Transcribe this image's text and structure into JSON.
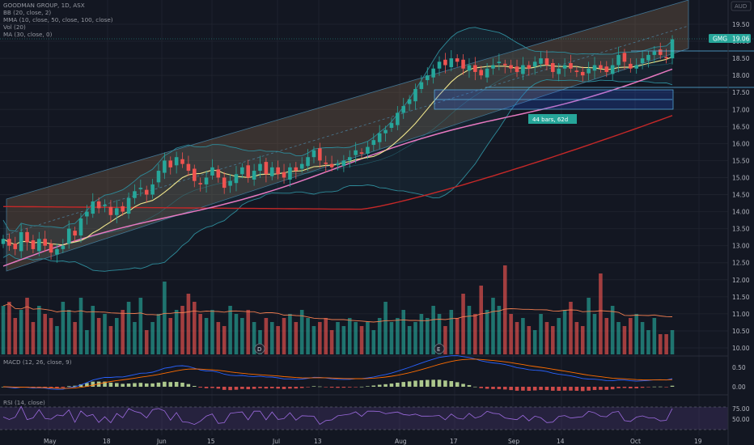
{
  "header": {
    "symbol_line": "GOODMAN GROUP, 1D, ASX",
    "indicators": [
      "BB (20, close, 2)",
      "MMA (10, close, 50, close, 100, close)",
      "Vol (20)",
      "MA (30, close, 0)"
    ],
    "currency_badge": "AUD"
  },
  "price_tag": {
    "label": "GMG",
    "value": "19.06"
  },
  "measure_label": "44 bars, 62d",
  "event_markers": [
    "D",
    "E"
  ],
  "macd_label": "MACD (12, 26, close, 9)",
  "rsi_label": "RSI (14, close)",
  "price_axis": [
    "19.50",
    "19.00",
    "18.50",
    "18.00",
    "17.50",
    "17.00",
    "16.50",
    "16.00",
    "15.50",
    "15.00",
    "14.50",
    "14.00",
    "13.50",
    "13.00",
    "12.50",
    "12.00",
    "11.50",
    "11.00",
    "10.50",
    "10.00"
  ],
  "macd_axis": [
    "0.50",
    "0.00"
  ],
  "rsi_axis": [
    "75.00",
    "50.00"
  ],
  "time_axis": [
    "May",
    "18",
    "Jun",
    "15",
    "Jul",
    "13",
    "Aug",
    "17",
    "Sep",
    "14",
    "Oct",
    "19"
  ],
  "colors": {
    "up": "#26a69a",
    "down": "#ef5350",
    "bg": "#131722",
    "channel": "#8d6e4f",
    "bb": "#2e8b9a",
    "ma10": "#f0e68c",
    "ma50": "#e779c1",
    "ma100": "#c62828",
    "macd": "#2962ff",
    "signal": "#ff6d00",
    "rsi": "#9c6ade"
  },
  "chart_data": {
    "type": "candlestick",
    "title": "GOODMAN GROUP, 1D, ASX",
    "price_range": [
      9.9,
      19.9
    ],
    "x_ticks": [
      "May",
      "18",
      "Jun",
      "15",
      "Jul",
      "13",
      "Aug",
      "17",
      "Sep",
      "14",
      "Oct",
      "19"
    ],
    "closes": [
      13.2,
      13.0,
      12.9,
      13.4,
      13.1,
      12.9,
      13.2,
      13.0,
      12.8,
      12.9,
      13.0,
      13.5,
      13.3,
      13.8,
      14.0,
      14.3,
      14.1,
      14.2,
      13.9,
      14.1,
      14.0,
      14.4,
      14.6,
      14.7,
      14.5,
      14.8,
      15.2,
      15.5,
      15.3,
      15.6,
      15.4,
      15.2,
      14.9,
      14.8,
      15.0,
      15.3,
      15.0,
      14.7,
      14.9,
      15.1,
      15.3,
      15.0,
      15.2,
      15.4,
      15.1,
      15.3,
      15.1,
      15.0,
      15.3,
      15.2,
      15.4,
      15.6,
      15.8,
      15.5,
      15.4,
      15.3,
      15.4,
      15.5,
      15.6,
      15.8,
      15.7,
      15.9,
      16.1,
      16.3,
      16.4,
      16.6,
      16.9,
      17.1,
      17.3,
      17.6,
      17.8,
      18.0,
      18.2,
      18.4,
      18.3,
      18.5,
      18.4,
      18.2,
      18.3,
      18.1,
      18.0,
      18.2,
      18.3,
      18.4,
      18.3,
      18.2,
      18.1,
      18.3,
      18.2,
      18.4,
      18.5,
      18.3,
      18.1,
      18.2,
      18.3,
      18.2,
      18.1,
      18.0,
      18.2,
      18.3,
      18.2,
      18.1,
      18.3,
      18.6,
      18.4,
      18.2,
      18.3,
      18.5,
      18.6,
      18.7,
      18.6,
      18.5,
      19.06
    ],
    "volumes": [
      1.2,
      1.3,
      0.9,
      1.1,
      1.4,
      0.8,
      1.2,
      1.0,
      0.9,
      0.7,
      1.3,
      1.1,
      0.8,
      1.4,
      0.6,
      1.2,
      0.9,
      1.0,
      0.7,
      0.9,
      1.1,
      1.3,
      0.8,
      1.4,
      0.6,
      0.8,
      1.0,
      1.8,
      0.9,
      1.1,
      1.2,
      1.5,
      1.3,
      1.0,
      0.9,
      1.1,
      0.8,
      0.7,
      1.2,
      1.0,
      0.9,
      1.1,
      0.8,
      0.6,
      0.9,
      0.8,
      0.7,
      0.9,
      1.0,
      0.8,
      1.1,
      0.9,
      0.7,
      0.8,
      0.9,
      0.6,
      0.8,
      0.7,
      0.9,
      0.8,
      0.7,
      0.8,
      0.6,
      0.9,
      1.3,
      0.8,
      0.9,
      1.1,
      0.7,
      0.8,
      1.0,
      0.9,
      1.2,
      1.0,
      0.7,
      1.1,
      0.9,
      1.5,
      1.2,
      1.0,
      1.7,
      1.1,
      1.4,
      1.2,
      2.2,
      1.0,
      0.8,
      0.9,
      0.7,
      0.6,
      1.0,
      0.8,
      0.7,
      0.9,
      1.1,
      1.3,
      0.8,
      0.7,
      1.4,
      1.0,
      2.0,
      0.9,
      1.2,
      0.8,
      0.7,
      0.9,
      1.0,
      0.8,
      0.6,
      0.9,
      0.5,
      0.5,
      0.6
    ]
  }
}
